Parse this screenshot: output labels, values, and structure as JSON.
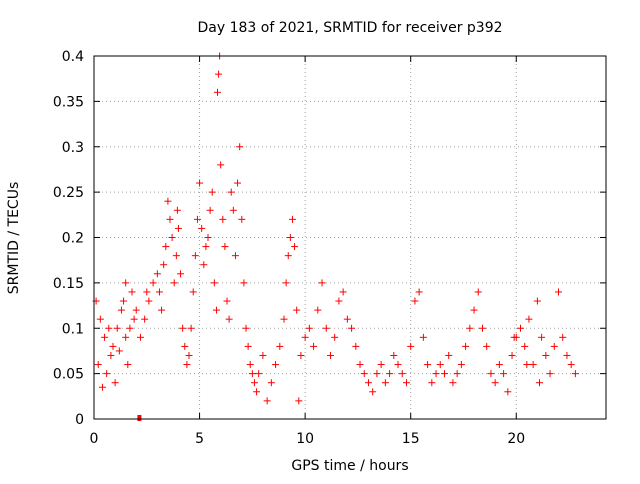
{
  "chart_data": {
    "type": "scatter",
    "title": "Day 183 of 2021, SRMTID for receiver p392",
    "xlabel": "GPS time / hours",
    "ylabel": "SRMTID / TECUs",
    "xlim": [
      0,
      24.25
    ],
    "ylim": [
      0,
      0.4
    ],
    "xticks": [
      0,
      5,
      10,
      15,
      20
    ],
    "xtick_labels": [
      "0",
      "5",
      "10",
      "15",
      "20"
    ],
    "yticks": [
      0,
      0.05,
      0.1,
      0.15,
      0.2,
      0.25,
      0.3,
      0.35,
      0.4
    ],
    "ytick_labels": [
      "0",
      "0.05",
      "0.1",
      "0.15",
      "0.2",
      "0.25",
      "0.3",
      "0.35",
      "0.4"
    ],
    "grid": true,
    "marker": "+",
    "color": "#ff0000",
    "series": [
      {
        "name": "SRMTID",
        "points": [
          [
            0.1,
            0.13
          ],
          [
            0.3,
            0.11
          ],
          [
            0.5,
            0.09
          ],
          [
            0.7,
            0.1
          ],
          [
            0.9,
            0.08
          ],
          [
            1.1,
            0.1
          ],
          [
            1.3,
            0.12
          ],
          [
            1.5,
            0.09
          ],
          [
            1.7,
            0.1
          ],
          [
            1.9,
            0.11
          ],
          [
            0.2,
            0.06
          ],
          [
            0.6,
            0.05
          ],
          [
            1.0,
            0.04
          ],
          [
            0.4,
            0.035
          ],
          [
            0.8,
            0.07
          ],
          [
            1.2,
            0.075
          ],
          [
            1.6,
            0.06
          ],
          [
            1.4,
            0.13
          ],
          [
            1.5,
            0.15
          ],
          [
            1.8,
            0.14
          ],
          [
            2.0,
            0.12
          ],
          [
            2.2,
            0.09
          ],
          [
            2.4,
            0.11
          ],
          [
            2.5,
            0.14
          ],
          [
            2.6,
            0.13
          ],
          [
            2.8,
            0.15
          ],
          [
            3.0,
            0.16
          ],
          [
            3.1,
            0.14
          ],
          [
            3.2,
            0.12
          ],
          [
            3.3,
            0.17
          ],
          [
            3.4,
            0.19
          ],
          [
            3.5,
            0.24
          ],
          [
            3.6,
            0.22
          ],
          [
            3.7,
            0.2
          ],
          [
            3.8,
            0.15
          ],
          [
            3.9,
            0.18
          ],
          [
            3.95,
            0.23
          ],
          [
            4.0,
            0.21
          ],
          [
            4.1,
            0.16
          ],
          [
            4.2,
            0.1
          ],
          [
            4.3,
            0.08
          ],
          [
            4.4,
            0.06
          ],
          [
            4.5,
            0.07
          ],
          [
            4.6,
            0.1
          ],
          [
            4.7,
            0.14
          ],
          [
            4.8,
            0.18
          ],
          [
            4.9,
            0.22
          ],
          [
            5.0,
            0.26
          ],
          [
            5.1,
            0.21
          ],
          [
            5.2,
            0.17
          ],
          [
            5.3,
            0.19
          ],
          [
            5.4,
            0.2
          ],
          [
            5.5,
            0.23
          ],
          [
            5.6,
            0.25
          ],
          [
            5.7,
            0.15
          ],
          [
            5.8,
            0.12
          ],
          [
            5.85,
            0.36
          ],
          [
            5.9,
            0.38
          ],
          [
            5.95,
            0.4
          ],
          [
            6.0,
            0.28
          ],
          [
            6.1,
            0.22
          ],
          [
            6.2,
            0.19
          ],
          [
            6.3,
            0.13
          ],
          [
            6.4,
            0.11
          ],
          [
            6.5,
            0.25
          ],
          [
            6.6,
            0.23
          ],
          [
            6.7,
            0.18
          ],
          [
            6.8,
            0.26
          ],
          [
            6.9,
            0.3
          ],
          [
            7.0,
            0.22
          ],
          [
            7.1,
            0.15
          ],
          [
            7.2,
            0.1
          ],
          [
            7.3,
            0.08
          ],
          [
            7.4,
            0.06
          ],
          [
            7.5,
            0.05
          ],
          [
            7.6,
            0.04
          ],
          [
            7.7,
            0.03
          ],
          [
            7.8,
            0.05
          ],
          [
            8.0,
            0.07
          ],
          [
            8.2,
            0.02
          ],
          [
            8.4,
            0.04
          ],
          [
            8.6,
            0.06
          ],
          [
            8.8,
            0.08
          ],
          [
            9.0,
            0.11
          ],
          [
            9.1,
            0.15
          ],
          [
            9.2,
            0.18
          ],
          [
            9.3,
            0.2
          ],
          [
            9.4,
            0.22
          ],
          [
            9.5,
            0.19
          ],
          [
            9.6,
            0.12
          ],
          [
            9.7,
            0.02
          ],
          [
            9.8,
            0.07
          ],
          [
            10.0,
            0.09
          ],
          [
            10.2,
            0.1
          ],
          [
            10.4,
            0.08
          ],
          [
            10.6,
            0.12
          ],
          [
            10.8,
            0.15
          ],
          [
            11.0,
            0.1
          ],
          [
            11.2,
            0.07
          ],
          [
            11.4,
            0.09
          ],
          [
            11.6,
            0.13
          ],
          [
            11.8,
            0.14
          ],
          [
            12.0,
            0.11
          ],
          [
            12.2,
            0.1
          ],
          [
            12.4,
            0.08
          ],
          [
            12.6,
            0.06
          ],
          [
            12.8,
            0.05
          ],
          [
            13.0,
            0.04
          ],
          [
            13.2,
            0.03
          ],
          [
            13.4,
            0.05
          ],
          [
            13.6,
            0.06
          ],
          [
            13.8,
            0.04
          ],
          [
            14.0,
            0.05
          ],
          [
            14.2,
            0.07
          ],
          [
            14.4,
            0.06
          ],
          [
            14.6,
            0.05
          ],
          [
            14.8,
            0.04
          ],
          [
            15.0,
            0.08
          ],
          [
            15.2,
            0.13
          ],
          [
            15.4,
            0.14
          ],
          [
            15.6,
            0.09
          ],
          [
            15.8,
            0.06
          ],
          [
            16.0,
            0.04
          ],
          [
            16.2,
            0.05
          ],
          [
            16.4,
            0.06
          ],
          [
            16.6,
            0.05
          ],
          [
            16.8,
            0.07
          ],
          [
            17.0,
            0.04
          ],
          [
            17.2,
            0.05
          ],
          [
            17.4,
            0.06
          ],
          [
            17.6,
            0.08
          ],
          [
            17.8,
            0.1
          ],
          [
            18.0,
            0.12
          ],
          [
            18.2,
            0.14
          ],
          [
            18.4,
            0.1
          ],
          [
            18.6,
            0.08
          ],
          [
            18.8,
            0.05
          ],
          [
            19.0,
            0.04
          ],
          [
            19.2,
            0.06
          ],
          [
            19.4,
            0.05
          ],
          [
            19.6,
            0.03
          ],
          [
            19.8,
            0.07
          ],
          [
            20.0,
            0.09
          ],
          [
            20.2,
            0.1
          ],
          [
            20.4,
            0.08
          ],
          [
            20.6,
            0.11
          ],
          [
            20.8,
            0.06
          ],
          [
            21.0,
            0.13
          ],
          [
            21.2,
            0.09
          ],
          [
            21.4,
            0.07
          ],
          [
            21.6,
            0.05
          ],
          [
            21.8,
            0.08
          ],
          [
            22.0,
            0.14
          ],
          [
            22.2,
            0.09
          ],
          [
            22.4,
            0.07
          ],
          [
            22.6,
            0.06
          ],
          [
            22.8,
            0.05
          ],
          [
            21.1,
            0.04
          ],
          [
            20.5,
            0.06
          ],
          [
            19.9,
            0.09
          ]
        ],
        "zero_markers": [
          [
            2.15,
            0.0
          ]
        ]
      }
    ]
  }
}
